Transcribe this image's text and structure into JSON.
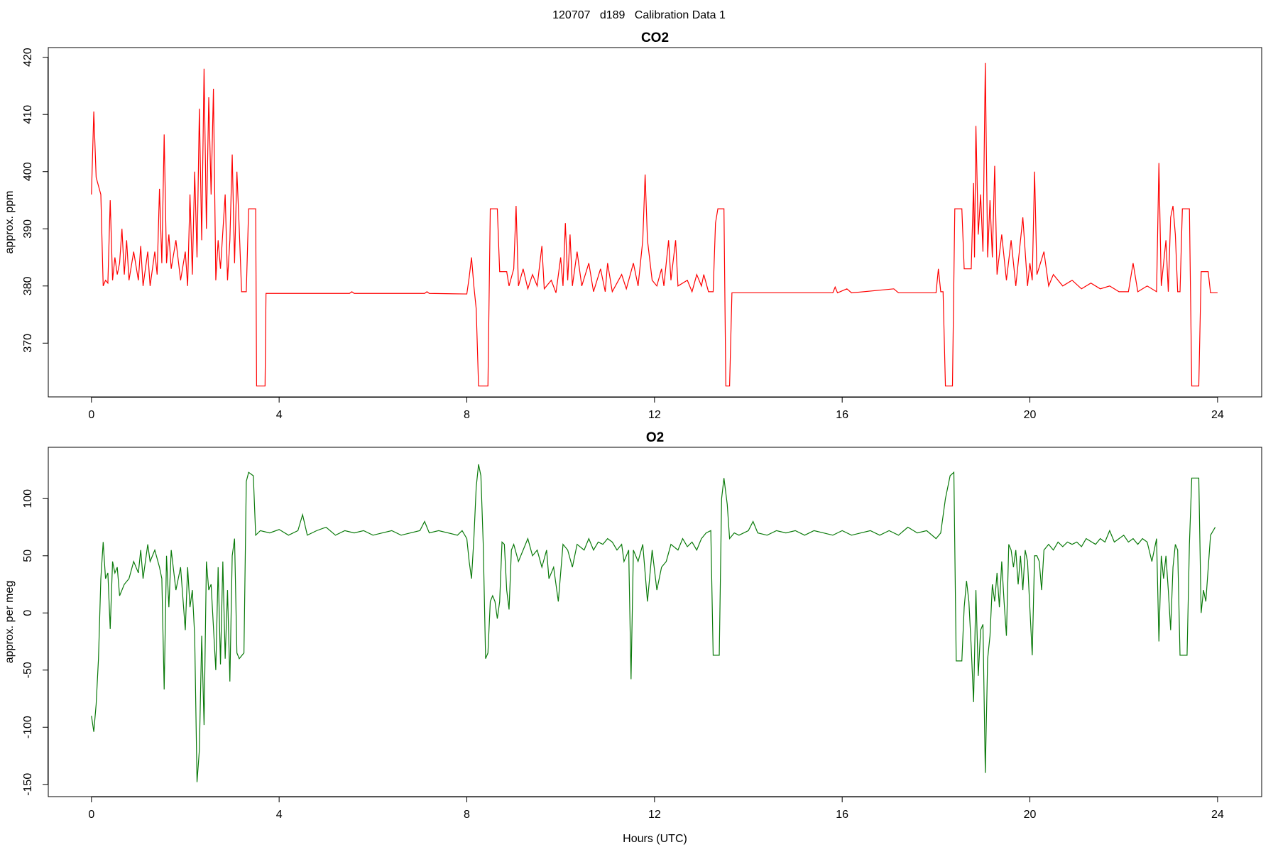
{
  "title": "120707   d189   Calibration Data 1",
  "chart_data": [
    {
      "type": "line",
      "title": "CO2",
      "y_label": "approx. ppm",
      "color": "#ff0000",
      "xlim": [
        -0.92,
        24.94
      ],
      "xticks": [
        0,
        4,
        8,
        12,
        16,
        20,
        24
      ],
      "ylim": [
        360.6,
        421.7
      ],
      "yticks": [
        370,
        380,
        390,
        400,
        410,
        420
      ],
      "x": [
        0.0,
        0.05,
        0.1,
        0.2,
        0.25,
        0.3,
        0.35,
        0.4,
        0.45,
        0.5,
        0.55,
        0.6,
        0.65,
        0.7,
        0.75,
        0.8,
        0.9,
        1.0,
        1.05,
        1.1,
        1.2,
        1.25,
        1.35,
        1.4,
        1.45,
        1.5,
        1.55,
        1.6,
        1.65,
        1.7,
        1.8,
        1.9,
        2.0,
        2.05,
        2.1,
        2.15,
        2.2,
        2.25,
        2.3,
        2.35,
        2.4,
        2.45,
        2.5,
        2.55,
        2.6,
        2.65,
        2.7,
        2.75,
        2.85,
        2.9,
        2.95,
        3.0,
        3.05,
        3.1,
        3.15,
        3.2,
        3.3,
        3.35,
        3.5,
        3.52,
        3.55,
        3.7,
        3.72,
        5.5,
        5.55,
        5.6,
        7.1,
        7.15,
        7.2,
        8.0,
        8.05,
        8.1,
        8.15,
        8.2,
        8.25,
        8.45,
        8.5,
        8.65,
        8.7,
        8.85,
        8.9,
        9.0,
        9.05,
        9.1,
        9.2,
        9.3,
        9.4,
        9.5,
        9.6,
        9.65,
        9.8,
        9.9,
        10.0,
        10.05,
        10.1,
        10.15,
        10.2,
        10.25,
        10.35,
        10.45,
        10.6,
        10.7,
        10.85,
        10.95,
        11.0,
        11.1,
        11.3,
        11.4,
        11.55,
        11.65,
        11.75,
        11.8,
        11.85,
        11.95,
        12.05,
        12.15,
        12.2,
        12.3,
        12.35,
        12.45,
        12.5,
        12.7,
        12.8,
        12.9,
        13.0,
        13.05,
        13.15,
        13.25,
        13.3,
        13.35,
        13.48,
        13.52,
        13.6,
        13.65,
        15.8,
        15.85,
        15.9,
        16.1,
        16.2,
        17.1,
        17.2,
        18.0,
        18.05,
        18.1,
        18.15,
        18.2,
        18.35,
        18.4,
        18.55,
        18.6,
        18.75,
        18.8,
        18.82,
        18.85,
        18.9,
        18.95,
        19.0,
        19.05,
        19.1,
        19.15,
        19.2,
        19.25,
        19.3,
        19.4,
        19.5,
        19.6,
        19.7,
        19.85,
        19.95,
        20.0,
        20.05,
        20.1,
        20.15,
        20.3,
        20.4,
        20.5,
        20.7,
        20.9,
        21.1,
        21.3,
        21.5,
        21.7,
        21.9,
        22.1,
        22.2,
        22.3,
        22.5,
        22.7,
        22.75,
        22.8,
        22.9,
        22.95,
        23.0,
        23.05,
        23.1,
        23.15,
        23.2,
        23.25,
        23.4,
        23.45,
        23.6,
        23.65,
        23.8,
        23.85,
        24.0
      ],
      "values": [
        396,
        410.5,
        399,
        396,
        380,
        381,
        380.5,
        395,
        381,
        385,
        382,
        384,
        390,
        382,
        388,
        381,
        386,
        381,
        387,
        380,
        386,
        380,
        386,
        382,
        397,
        384,
        406.5,
        384,
        389,
        383,
        388,
        381,
        386,
        380,
        396,
        382,
        400,
        385,
        411,
        388,
        418,
        390,
        413,
        396,
        414.5,
        381,
        388,
        383,
        396,
        381,
        388,
        403,
        384,
        400,
        390,
        379,
        379,
        393.5,
        393.5,
        362.5,
        362.5,
        362.5,
        378.7,
        378.7,
        379,
        378.7,
        378.7,
        379,
        378.7,
        378.6,
        381.5,
        385,
        380,
        376,
        362.5,
        362.5,
        393.5,
        393.5,
        382.5,
        382.5,
        380,
        383,
        394,
        380,
        383,
        379.5,
        382,
        380,
        387,
        379.5,
        381,
        378.8,
        385,
        380,
        391,
        381,
        389,
        380,
        386,
        380,
        384,
        379,
        383,
        379,
        384,
        379,
        382,
        379.5,
        384,
        380,
        388,
        399.5,
        388,
        381,
        380,
        383,
        380,
        388,
        381,
        388,
        380,
        381,
        379,
        382,
        380,
        382,
        379,
        379,
        391,
        393.5,
        393.5,
        362.5,
        362.5,
        378.8,
        378.8,
        379.8,
        378.8,
        379.5,
        378.8,
        379.5,
        378.8,
        378.8,
        383,
        379,
        379,
        362.5,
        362.5,
        393.5,
        393.5,
        383,
        383,
        398,
        385,
        408,
        389,
        396,
        386,
        419,
        385,
        395,
        385,
        401,
        382,
        389,
        381,
        388,
        380,
        392,
        380,
        384,
        381,
        400,
        382,
        386,
        380,
        382,
        380,
        381,
        379.5,
        380.5,
        379.5,
        380,
        379,
        379,
        384,
        379,
        380,
        379,
        401.5,
        380,
        388,
        379,
        392,
        394,
        389,
        379,
        379,
        393.5,
        393.5,
        362.5,
        362.5,
        382.5,
        382.5,
        378.8,
        378.8
      ]
    },
    {
      "type": "line",
      "title": "O2",
      "y_label": "approx. per meg",
      "x_label": "Hours (UTC)",
      "color": "#0a7a0a",
      "xlim": [
        -0.92,
        24.94
      ],
      "xticks": [
        0,
        4,
        8,
        12,
        16,
        20,
        24
      ],
      "ylim": [
        -160.7,
        144.9
      ],
      "yticks": [
        -150,
        -100,
        -50,
        0,
        50,
        100
      ],
      "x": [
        0.0,
        0.05,
        0.1,
        0.15,
        0.2,
        0.25,
        0.3,
        0.35,
        0.4,
        0.45,
        0.5,
        0.55,
        0.6,
        0.7,
        0.8,
        0.9,
        1.0,
        1.05,
        1.1,
        1.2,
        1.25,
        1.35,
        1.45,
        1.5,
        1.55,
        1.6,
        1.65,
        1.7,
        1.8,
        1.9,
        2.0,
        2.05,
        2.1,
        2.15,
        2.2,
        2.25,
        2.3,
        2.35,
        2.4,
        2.45,
        2.5,
        2.55,
        2.65,
        2.7,
        2.75,
        2.8,
        2.85,
        2.9,
        2.95,
        3.0,
        3.05,
        3.1,
        3.15,
        3.25,
        3.3,
        3.35,
        3.45,
        3.5,
        3.6,
        3.8,
        4.0,
        4.2,
        4.4,
        4.5,
        4.6,
        4.8,
        5.0,
        5.2,
        5.4,
        5.6,
        5.8,
        6.0,
        6.2,
        6.4,
        6.6,
        6.8,
        7.0,
        7.1,
        7.2,
        7.4,
        7.6,
        7.8,
        7.9,
        8.0,
        8.05,
        8.1,
        8.15,
        8.2,
        8.25,
        8.3,
        8.35,
        8.4,
        8.45,
        8.5,
        8.55,
        8.6,
        8.65,
        8.7,
        8.75,
        8.8,
        8.85,
        8.9,
        8.95,
        9.0,
        9.1,
        9.2,
        9.3,
        9.4,
        9.5,
        9.6,
        9.7,
        9.75,
        9.85,
        9.95,
        10.05,
        10.15,
        10.25,
        10.35,
        10.5,
        10.6,
        10.7,
        10.8,
        10.9,
        11.0,
        11.1,
        11.2,
        11.3,
        11.35,
        11.45,
        11.5,
        11.55,
        11.65,
        11.75,
        11.85,
        11.95,
        12.05,
        12.15,
        12.25,
        12.35,
        12.5,
        12.6,
        12.7,
        12.8,
        12.9,
        13.0,
        13.1,
        13.2,
        13.25,
        13.38,
        13.43,
        13.48,
        13.55,
        13.6,
        13.7,
        13.8,
        14.0,
        14.1,
        14.2,
        14.4,
        14.6,
        14.8,
        15.0,
        15.2,
        15.4,
        15.6,
        15.8,
        16.0,
        16.2,
        16.4,
        16.6,
        16.8,
        17.0,
        17.2,
        17.4,
        17.6,
        17.8,
        18.0,
        18.1,
        18.2,
        18.3,
        18.38,
        18.43,
        18.55,
        18.6,
        18.65,
        18.7,
        18.75,
        18.8,
        18.85,
        18.9,
        18.95,
        19.0,
        19.05,
        19.1,
        19.15,
        19.2,
        19.25,
        19.3,
        19.35,
        19.4,
        19.45,
        19.5,
        19.55,
        19.6,
        19.65,
        19.7,
        19.75,
        19.8,
        19.85,
        19.9,
        19.95,
        20.05,
        20.1,
        20.15,
        20.2,
        20.25,
        20.3,
        20.4,
        20.5,
        20.6,
        20.7,
        20.8,
        20.9,
        21.0,
        21.1,
        21.2,
        21.4,
        21.5,
        21.6,
        21.7,
        21.8,
        21.9,
        22.0,
        22.1,
        22.2,
        22.3,
        22.4,
        22.5,
        22.6,
        22.7,
        22.75,
        22.8,
        22.85,
        22.9,
        22.95,
        23.0,
        23.05,
        23.1,
        23.15,
        23.2,
        23.35,
        23.4,
        23.45,
        23.6,
        23.65,
        23.7,
        23.75,
        23.85,
        23.95
      ],
      "values": [
        -90,
        -104,
        -80,
        -40,
        30,
        62,
        30,
        35,
        -14,
        45,
        35,
        40,
        15,
        25,
        30,
        45,
        35,
        55,
        30,
        60,
        45,
        55,
        40,
        30,
        -67,
        50,
        5,
        55,
        20,
        40,
        -15,
        40,
        5,
        20,
        -20,
        -148,
        -120,
        -20,
        -98,
        45,
        20,
        25,
        -50,
        40,
        -45,
        45,
        -40,
        20,
        -60,
        50,
        65,
        -35,
        -40,
        -35,
        115,
        123,
        120,
        68,
        72,
        70,
        73,
        68,
        72,
        86,
        68,
        72,
        75,
        68,
        72,
        70,
        72,
        68,
        70,
        72,
        68,
        70,
        72,
        80,
        70,
        72,
        70,
        68,
        72,
        65,
        45,
        30,
        65,
        110,
        130,
        120,
        60,
        -40,
        -35,
        10,
        15,
        10,
        -5,
        10,
        62,
        60,
        20,
        3,
        55,
        60,
        45,
        55,
        65,
        50,
        55,
        40,
        55,
        30,
        40,
        10,
        60,
        55,
        40,
        60,
        55,
        65,
        55,
        62,
        60,
        65,
        62,
        55,
        60,
        45,
        55,
        -58,
        55,
        45,
        60,
        10,
        55,
        20,
        40,
        45,
        60,
        55,
        65,
        58,
        62,
        55,
        65,
        70,
        72,
        -37,
        -37,
        100,
        118,
        95,
        65,
        70,
        68,
        72,
        80,
        70,
        68,
        72,
        70,
        72,
        68,
        72,
        70,
        68,
        72,
        68,
        70,
        72,
        68,
        72,
        68,
        75,
        70,
        72,
        65,
        70,
        100,
        120,
        123,
        -42,
        -42,
        5,
        28,
        10,
        -30,
        -78,
        20,
        -55,
        -15,
        -10,
        -140,
        -40,
        -20,
        25,
        10,
        35,
        5,
        45,
        10,
        -20,
        60,
        55,
        40,
        55,
        25,
        50,
        20,
        55,
        45,
        -37,
        50,
        50,
        45,
        20,
        55,
        60,
        55,
        62,
        58,
        62,
        60,
        62,
        58,
        65,
        60,
        65,
        62,
        72,
        62,
        65,
        68,
        62,
        65,
        60,
        65,
        62,
        45,
        65,
        -25,
        50,
        30,
        50,
        20,
        -15,
        40,
        60,
        55,
        -37,
        -37,
        60,
        118,
        118,
        0,
        20,
        10,
        68,
        75
      ]
    }
  ]
}
